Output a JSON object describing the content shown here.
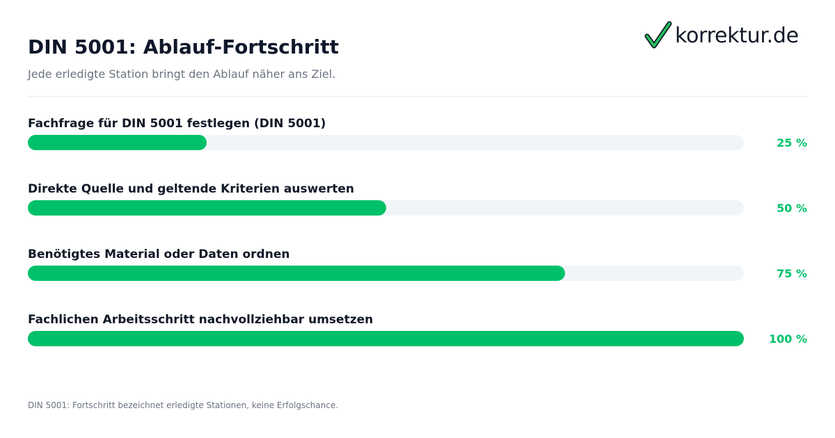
{
  "header": {
    "title": "DIN 5001: Ablauf-Fortschritt",
    "subtitle": "Jede erledigte Station bringt den Ablauf näher ans Ziel."
  },
  "logo": {
    "text": "korrektur.de",
    "icon": "checkmark-icon"
  },
  "chart_data": {
    "type": "bar",
    "orientation": "horizontal",
    "title": "DIN 5001: Ablauf-Fortschritt",
    "subtitle": "Jede erledigte Station bringt den Ablauf näher ans Ziel.",
    "categories": [
      "Fachfrage für DIN 5001 festlegen (DIN 5001)",
      "Direkte Quelle und geltende Kriterien auswerten",
      "Benötigtes Material oder Daten ordnen",
      "Fachlichen Arbeitsschritt nachvollziehbar umsetzen"
    ],
    "values": [
      25,
      50,
      75,
      100
    ],
    "value_labels": [
      "25 %",
      "50 %",
      "75 %",
      "100 %"
    ],
    "xlim": [
      0,
      100
    ],
    "unit": "%",
    "grid": false,
    "legend": "none"
  },
  "colors": {
    "accent": "#00c16a",
    "track": "#f1f5f9",
    "title": "#0f172a",
    "muted": "#6b7280"
  },
  "footer": {
    "note": "DIN 5001: Fortschritt bezeichnet erledigte Stationen, keine Erfolgschance."
  }
}
